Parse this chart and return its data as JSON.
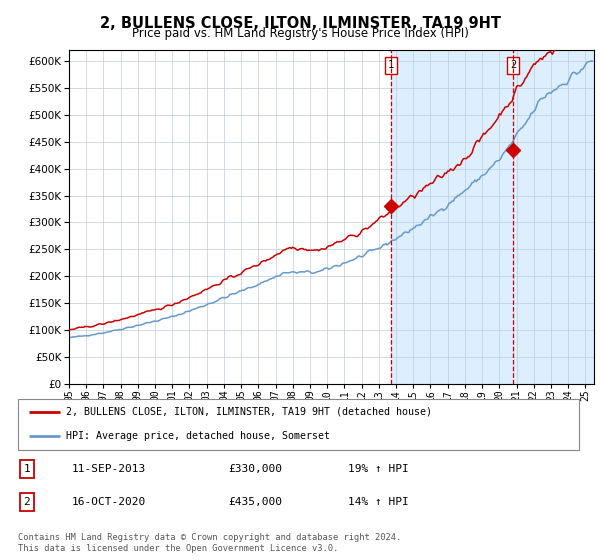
{
  "title": "2, BULLENS CLOSE, ILTON, ILMINSTER, TA19 9HT",
  "subtitle": "Price paid vs. HM Land Registry's House Price Index (HPI)",
  "legend_line1": "2, BULLENS CLOSE, ILTON, ILMINSTER, TA19 9HT (detached house)",
  "legend_line2": "HPI: Average price, detached house, Somerset",
  "transaction1_label": "1",
  "transaction1_date": "11-SEP-2013",
  "transaction1_price": "£330,000",
  "transaction1_hpi": "19% ↑ HPI",
  "transaction2_label": "2",
  "transaction2_date": "16-OCT-2020",
  "transaction2_price": "£435,000",
  "transaction2_hpi": "14% ↑ HPI",
  "footer": "Contains HM Land Registry data © Crown copyright and database right 2024.\nThis data is licensed under the Open Government Licence v3.0.",
  "red_color": "#cc0000",
  "blue_color": "#6699cc",
  "bg_color": "#ddeeff",
  "marker_color": "#cc0000",
  "dashed_color": "#cc0000",
  "ylim": [
    0,
    620000
  ],
  "yticks": [
    0,
    50000,
    100000,
    150000,
    200000,
    250000,
    300000,
    350000,
    400000,
    450000,
    500000,
    550000,
    600000
  ],
  "xmin": 1995.0,
  "xmax": 2025.5,
  "transaction1_x": 2013.71,
  "transaction1_y": 330000,
  "transaction2_x": 2020.79,
  "transaction2_y": 435000
}
